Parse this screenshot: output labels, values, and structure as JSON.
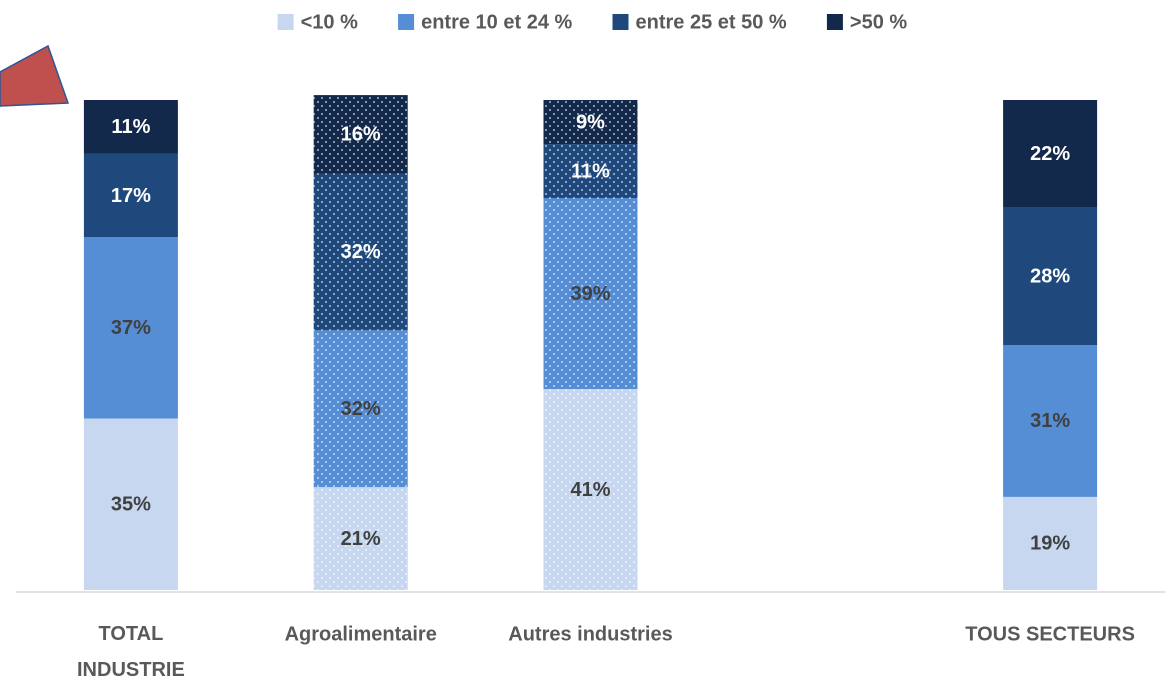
{
  "chart_data": {
    "type": "stacked_bar",
    "categories": [
      "TOTAL INDUSTRIE",
      "Agroalimentaire",
      "Autres industries",
      null,
      "TOUS SECTEURS"
    ],
    "dotted": [
      false,
      true,
      true,
      false,
      false
    ],
    "series": [
      {
        "name": "<10 %",
        "color": "#c6d7ef",
        "label_color": "#404040",
        "values": [
          35,
          21,
          41,
          null,
          19
        ],
        "value_labels": [
          "35%",
          "21%",
          "41%",
          null,
          "19%"
        ]
      },
      {
        "name": "entre 10 et 24 %",
        "color": "#558ed5",
        "label_color": "#404040",
        "values": [
          37,
          32,
          39,
          null,
          31
        ],
        "value_labels": [
          "37%",
          "32%",
          "39%",
          null,
          "31%"
        ]
      },
      {
        "name": "entre 25 et 50 %",
        "color": "#1f497d",
        "label_color": "#ffffff",
        "values": [
          17,
          32,
          11,
          null,
          28
        ],
        "value_labels": [
          "17%",
          "32%",
          "11%",
          null,
          "28%"
        ]
      },
      {
        "name": ">50 %",
        "color": "#13294b",
        "label_color": "#ffffff",
        "values": [
          11,
          16,
          9,
          null,
          22
        ],
        "value_labels": [
          "11%",
          "16%",
          "9%",
          null,
          "22%"
        ]
      }
    ],
    "legend": "top"
  }
}
